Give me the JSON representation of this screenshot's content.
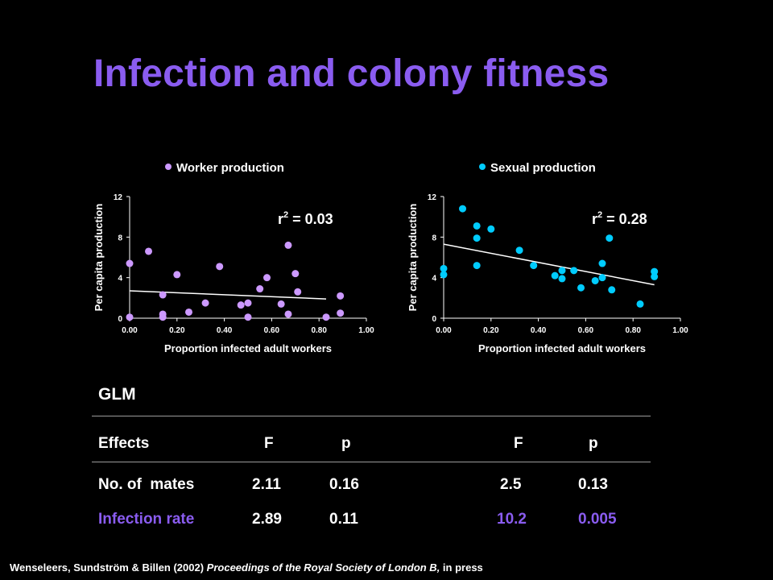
{
  "slide": {
    "title": "Infection and colony fitness",
    "accent_color": "#8a5cf0"
  },
  "chart_data": [
    {
      "type": "scatter",
      "legend": "Worker production",
      "legend_position": "top",
      "annotation": "r² = 0.03",
      "annotation_base": "r",
      "annotation_sup": "2",
      "annotation_rest": " = 0.03",
      "xlabel": "Proportion infected adult workers",
      "ylabel": "Per capita production",
      "xlim": [
        0,
        1
      ],
      "ylim": [
        0,
        12
      ],
      "xticks": [
        "0.00",
        "0.20",
        "0.40",
        "0.60",
        "0.80",
        "1.00"
      ],
      "yticks": [
        "0",
        "4",
        "8",
        "12"
      ],
      "marker_color": "#cc99ff",
      "trendline": {
        "x": [
          0.0,
          0.83
        ],
        "y": [
          2.7,
          1.9
        ]
      },
      "points": [
        {
          "x": 0.0,
          "y": 5.4
        },
        {
          "x": 0.0,
          "y": 0.1
        },
        {
          "x": 0.08,
          "y": 6.6
        },
        {
          "x": 0.14,
          "y": 2.3
        },
        {
          "x": 0.14,
          "y": 0.4
        },
        {
          "x": 0.14,
          "y": 0.1
        },
        {
          "x": 0.2,
          "y": 4.3
        },
        {
          "x": 0.25,
          "y": 0.6
        },
        {
          "x": 0.32,
          "y": 1.5
        },
        {
          "x": 0.38,
          "y": 5.1
        },
        {
          "x": 0.47,
          "y": 1.3
        },
        {
          "x": 0.5,
          "y": 1.5
        },
        {
          "x": 0.5,
          "y": 0.1
        },
        {
          "x": 0.55,
          "y": 2.9
        },
        {
          "x": 0.58,
          "y": 4.0
        },
        {
          "x": 0.64,
          "y": 1.4
        },
        {
          "x": 0.67,
          "y": 7.2
        },
        {
          "x": 0.67,
          "y": 0.4
        },
        {
          "x": 0.7,
          "y": 4.4
        },
        {
          "x": 0.71,
          "y": 2.6
        },
        {
          "x": 0.83,
          "y": 0.1
        },
        {
          "x": 0.89,
          "y": 2.2
        },
        {
          "x": 0.89,
          "y": 0.5
        }
      ]
    },
    {
      "type": "scatter",
      "legend": "Sexual production",
      "legend_position": "top",
      "annotation": "r² = 0.28",
      "annotation_base": "r",
      "annotation_sup": "2",
      "annotation_rest": " = 0.28",
      "xlabel": "Proportion infected adult workers",
      "ylabel": "Per capita production",
      "xlim": [
        0,
        1
      ],
      "ylim": [
        0,
        12
      ],
      "xticks": [
        "0.00",
        "0.20",
        "0.40",
        "0.60",
        "0.80",
        "1.00"
      ],
      "yticks": [
        "0",
        "4",
        "8",
        "12"
      ],
      "marker_color": "#00ccff",
      "trendline": {
        "x": [
          0.0,
          0.89
        ],
        "y": [
          7.3,
          3.3
        ]
      },
      "points": [
        {
          "x": 0.0,
          "y": 4.9
        },
        {
          "x": 0.0,
          "y": 4.3
        },
        {
          "x": 0.08,
          "y": 10.8
        },
        {
          "x": 0.14,
          "y": 9.1
        },
        {
          "x": 0.14,
          "y": 7.9
        },
        {
          "x": 0.14,
          "y": 5.2
        },
        {
          "x": 0.2,
          "y": 8.8
        },
        {
          "x": 0.32,
          "y": 6.7
        },
        {
          "x": 0.38,
          "y": 5.2
        },
        {
          "x": 0.47,
          "y": 4.2
        },
        {
          "x": 0.5,
          "y": 4.7
        },
        {
          "x": 0.5,
          "y": 3.9
        },
        {
          "x": 0.55,
          "y": 4.7
        },
        {
          "x": 0.58,
          "y": 3.0
        },
        {
          "x": 0.64,
          "y": 3.7
        },
        {
          "x": 0.67,
          "y": 5.4
        },
        {
          "x": 0.67,
          "y": 4.0
        },
        {
          "x": 0.7,
          "y": 7.9
        },
        {
          "x": 0.71,
          "y": 2.8
        },
        {
          "x": 0.83,
          "y": 1.4
        },
        {
          "x": 0.89,
          "y": 4.6
        },
        {
          "x": 0.89,
          "y": 4.1
        }
      ]
    }
  ],
  "glm": {
    "heading": "GLM",
    "headers": {
      "effects": "Effects",
      "f1": "F",
      "p1": "p",
      "f2": "F",
      "p2": "p"
    },
    "rows": [
      {
        "effect": "No. of  mates",
        "f1": "2.11",
        "p1": "0.16",
        "f2": "2.5",
        "p2": "0.13"
      },
      {
        "effect": "Infection rate",
        "f1": "2.89",
        "p1": "0.11",
        "f2": "10.2",
        "p2": "0.005"
      }
    ]
  },
  "citation": {
    "authors": "Wenseleers, Sundström & Billen (2002) ",
    "journal": "Proceedings of the Royal Society of London B,",
    "status": " in press"
  }
}
